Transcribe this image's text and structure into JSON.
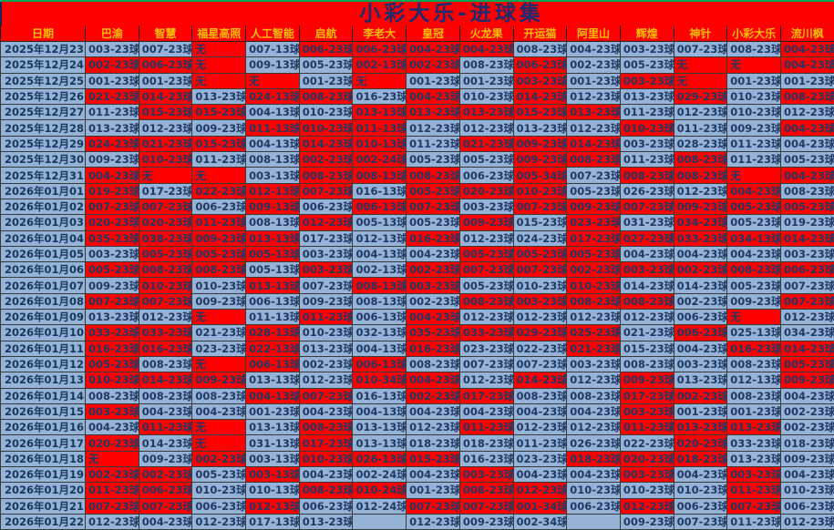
{
  "title": "小彩大乐-进球集",
  "colors": {
    "page_background": "#FF0000",
    "cell_red": "#FF0000",
    "cell_blue": "#95B3D7",
    "header_text": "#FFC000",
    "value_text": "#1F3864",
    "title_text": "#1b2c6e",
    "top_line_green": "#00A651"
  },
  "columns": [
    "日期",
    "巴渝",
    "智慧",
    "福星高照",
    "人工智能",
    "启航",
    "李老大",
    "皇冠",
    "火龙果",
    "开运猫",
    "阿里山",
    "辉煌",
    "神针",
    "小彩大乐",
    "流川枫"
  ],
  "rows": [
    {
      "date": "2025年12月23日",
      "cells": [
        "003-23球|b",
        "007-23球|b",
        "无|r",
        "007-13球|b",
        "006-23球|r",
        "006-23球|r",
        "004-23球|r",
        "004-23球|r",
        "008-23球|b",
        "004-23球|b",
        "003-23球|b",
        "007-23球|b",
        "008-23球|b",
        "004-23球|r"
      ]
    },
    {
      "date": "2025年12月24日",
      "cells": [
        "002-23球|r",
        "006-23球|r",
        "无|r",
        "009-13球|b",
        "005-23球|b",
        "002-13球|r",
        "002-23球|r",
        "008-23球|b",
        "006-23球|r",
        "002-23球|b",
        "005-23球|b",
        "无|r",
        "无|r",
        "004-23球|r"
      ]
    },
    {
      "date": "2025年12月25日",
      "cells": [
        "001-23球|b",
        "001-23球|b",
        "无|r",
        "无|r",
        "001-23球|b",
        "无|r",
        "001-23球|b",
        "001-23球|b",
        "003-23球|r",
        "001-23球|b",
        "003-23球|r",
        "无|r",
        "001-23球|b",
        "001-23球|b"
      ]
    },
    {
      "date": "2025年12月26日",
      "cells": [
        "021-23球|r",
        "014-23球|r",
        "013-23球|b",
        "024-13球|r",
        "008-23球|r",
        "016-23球|b",
        "004-23球|r",
        "010-23球|b",
        "014-23球|r",
        "012-23球|b",
        "013-23球|b",
        "029-23球|r",
        "010-23球|b",
        "008-23球|r"
      ]
    },
    {
      "date": "2025年12月27日",
      "cells": [
        "011-23球|b",
        "015-23球|r",
        "015-23球|r",
        "004-13球|b",
        "010-23球|b",
        "013-13球|r",
        "013-23球|r",
        "013-23球|r",
        "015-23球|r",
        "013-23球|r",
        "011-23球|b",
        "012-23球|b",
        "010-23球|b",
        "012-23球|b"
      ]
    },
    {
      "date": "2025年12月28日",
      "cells": [
        "013-23球|b",
        "012-23球|b",
        "009-23球|b",
        "011-13球|r",
        "010-23球|r",
        "011-13球|r",
        "012-23球|b",
        "012-23球|b",
        "013-23球|b",
        "012-23球|b",
        "010-23球|r",
        "011-23球|b",
        "009-23球|b",
        "004-23球|r"
      ]
    },
    {
      "date": "2025年12月29日",
      "cells": [
        "024-23球|r",
        "021-23球|r",
        "015-23球|r",
        "004-13球|b",
        "014-23球|r",
        "010-13球|r",
        "011-23球|b",
        "021-23球|r",
        "009-23球|r",
        "014-23球|r",
        "003-23球|b",
        "028-23球|b",
        "011-23球|b",
        "004-23球|b"
      ]
    },
    {
      "date": "2025年12月30日",
      "cells": [
        "009-23球|b",
        "010-23球|r",
        "011-23球|b",
        "008-13球|b",
        "002-23球|r",
        "002-24球|r",
        "005-23球|b",
        "005-23球|b",
        "009-23球|r",
        "008-23球|r",
        "011-23球|b",
        "008-23球|r",
        "011-23球|b",
        "005-23球|b"
      ]
    },
    {
      "date": "2025年12月31日",
      "cells": [
        "004-23球|r",
        "无|r",
        "无|r",
        "003-13球|b",
        "008-23球|r",
        "008-13球|r",
        "008-23球|r",
        "006-23球|b",
        "005-34球|r",
        "007-23球|b",
        "008-23球|r",
        "008-23球|r",
        "无|r",
        "004-23球|r"
      ]
    },
    {
      "date": "2026年01月01日",
      "cells": [
        "019-23球|r",
        "017-23球|b",
        "022-23球|r",
        "012-13球|r",
        "007-23球|r",
        "016-13球|b",
        "005-23球|r",
        "020-23球|r",
        "010-23球|r",
        "005-23球|b",
        "026-23球|b",
        "012-23球|b",
        "004-23球|r",
        "008-23球|b"
      ]
    },
    {
      "date": "2026年01月02日",
      "cells": [
        "007-23球|r",
        "007-23球|r",
        "006-23球|b",
        "009-13球|r",
        "006-23球|b",
        "006-13球|r",
        "007-23球|r",
        "003-23球|b",
        "007-23球|r",
        "009-23球|r",
        "007-23球|r",
        "009-23球|r",
        "005-23球|r",
        "005-23球|r"
      ]
    },
    {
      "date": "2026年01月03日",
      "cells": [
        "020-23球|r",
        "020-23球|r",
        "011-23球|r",
        "008-13球|b",
        "012-23球|r",
        "005-13球|b",
        "005-23球|b",
        "009-23球|r",
        "015-23球|b",
        "023-23球|r",
        "031-23球|b",
        "034-23球|r",
        "005-23球|b",
        "019-23球|b"
      ]
    },
    {
      "date": "2026年01月04日",
      "cells": [
        "035-23球|r",
        "038-23球|r",
        "009-23球|r",
        "013-13球|r",
        "017-23球|b",
        "012-13球|b",
        "016-23球|r",
        "012-23球|b",
        "024-23球|b",
        "017-23球|r",
        "027-23球|r",
        "033-23球|r",
        "034-13球|r",
        "014-23球|r"
      ]
    },
    {
      "date": "2026年01月05日",
      "cells": [
        "003-23球|b",
        "005-23球|r",
        "005-23球|r",
        "005-13球|r",
        "003-23球|b",
        "004-13球|b",
        "004-23球|b",
        "005-23球|r",
        "005-23球|r",
        "005-23球|r",
        "004-23球|b",
        "004-23球|b",
        "004-23球|b",
        "003-23球|b"
      ]
    },
    {
      "date": "2026年01月06日",
      "cells": [
        "005-23球|r",
        "008-23球|r",
        "008-23球|r",
        "005-13球|b",
        "003-23球|r",
        "002-13球|b",
        "002-23球|r",
        "007-23球|r",
        "007-23球|r",
        "002-23球|r",
        "003-23球|r",
        "002-23球|r",
        "008-23球|r",
        "006-23球|r"
      ]
    },
    {
      "date": "2026年01月07日",
      "cells": [
        "009-23球|b",
        "010-23球|r",
        "010-23球|b",
        "013-13球|r",
        "007-23球|b",
        "008-13球|r",
        "003-23球|r",
        "005-23球|b",
        "010-23球|b",
        "010-23球|r",
        "014-23球|b",
        "014-23球|b",
        "005-23球|b",
        "007-23球|b"
      ]
    },
    {
      "date": "2026年01月08日",
      "cells": [
        "007-23球|r",
        "007-23球|r",
        "009-23球|b",
        "006-13球|b",
        "009-23球|b",
        "008-13球|b",
        "002-23球|b",
        "008-23球|r",
        "003-23球|r",
        "008-23球|r",
        "008-23球|r",
        "002-23球|b",
        "009-23球|b",
        "007-23球|r"
      ]
    },
    {
      "date": "2026年01月09日",
      "cells": [
        "013-23球|b",
        "012-23球|b",
        "无|r",
        "011-13球|b",
        "011-23球|r",
        "006-13球|b",
        "004-23球|r",
        "012-23球|b",
        "012-23球|b",
        "012-23球|b",
        "012-23球|b",
        "006-23球|b",
        "无|r",
        "012-23球|b"
      ]
    },
    {
      "date": "2026年01月10日",
      "cells": [
        "033-23球|r",
        "033-23球|r",
        "021-23球|b",
        "028-13球|r",
        "010-23球|b",
        "032-13球|b",
        "035-23球|r",
        "033-23球|r",
        "029-23球|r",
        "025-23球|r",
        "021-23球|b",
        "006-23球|r",
        "025-13球|b",
        "034-23球|b"
      ]
    },
    {
      "date": "2026年01月11日",
      "cells": [
        "016-23球|r",
        "016-23球|r",
        "023-23球|b",
        "022-13球|r",
        "013-23球|b",
        "004-13球|b",
        "016-23球|r",
        "023-23球|b",
        "022-23球|b",
        "021-23球|r",
        "015-23球|b",
        "004-23球|b",
        "016-23球|r",
        "014-23球|r"
      ]
    },
    {
      "date": "2026年01月12日",
      "cells": [
        "005-23球|r",
        "008-23球|b",
        "无|r",
        "006-13球|r",
        "002-23球|b",
        "006-13球|r",
        "008-23球|b",
        "007-23球|b",
        "007-23球|b",
        "003-23球|b",
        "008-23球|b",
        "003-23球|b",
        "008-23球|b",
        "005-23球|r"
      ]
    },
    {
      "date": "2026年01月13日",
      "cells": [
        "010-23球|r",
        "014-23球|r",
        "009-23球|r",
        "013-13球|b",
        "012-23球|b",
        "010-34球|r",
        "004-23球|r",
        "012-23球|b",
        "014-23球|r",
        "012-23球|b",
        "009-23球|r",
        "013-23球|b",
        "012-13球|b",
        "009-23球|r"
      ]
    },
    {
      "date": "2026年01月14日",
      "cells": [
        "008-23球|b",
        "008-23球|b",
        "008-23球|b",
        "004-13球|r",
        "007-23球|r",
        "016-13球|b",
        "002-23球|r",
        "017-23球|r",
        "008-23球|b",
        "008-23球|b",
        "017-23球|r",
        "002-23球|r",
        "008-23球|b",
        "004-23球|b"
      ]
    },
    {
      "date": "2026年01月15日",
      "cells": [
        "003-23球|r",
        "004-23球|b",
        "004-23球|b",
        "001-23球|b",
        "004-23球|b",
        "004-13球|b",
        "004-23球|b",
        "004-23球|b",
        "004-23球|b",
        "004-23球|b",
        "003-23球|r",
        "001-23球|b",
        "001-23球|b",
        "002-23球|b"
      ]
    },
    {
      "date": "2026年01月16日",
      "cells": [
        "004-23球|b",
        "011-23球|r",
        "无|r",
        "013-13球|b",
        "008-23球|r",
        "013-13球|b",
        "012-23球|b",
        "011-23球|r",
        "012-23球|b",
        "012-23球|b",
        "011-23球|r",
        "013-23球|r",
        "013-23球|r",
        "002-23球|b"
      ]
    },
    {
      "date": "2026年01月17日",
      "cells": [
        "020-23球|r",
        "014-23球|b",
        "无|r",
        "031-13球|b",
        "017-23球|r",
        "013-13球|b",
        "018-23球|b",
        "018-23球|b",
        "011-23球|b",
        "026-23球|b",
        "022-23球|b",
        "020-23球|r",
        "033-23球|b",
        "018-23球|b"
      ]
    },
    {
      "date": "2026年01月18日",
      "cells": [
        "无|r",
        "009-23球|b",
        "002-23球|r",
        "003-13球|b",
        "010-23球|r",
        "026-13球|r",
        "015-23球|r",
        "016-23球|b",
        "023-23球|b",
        "018-23球|r",
        "020-23球|r",
        "018-23球|r",
        "013-23球|b",
        "009-23球|b"
      ]
    },
    {
      "date": "2026年01月19日",
      "cells": [
        "002-23球|r",
        "002-23球|r",
        "005-23球|b",
        "003-13球|r",
        "004-23球|b",
        "002-24球|b",
        "004-23球|b",
        "003-23球|r",
        "004-23球|b",
        "004-23球|b",
        "003-23球|r",
        "004-23球|b",
        "003-23球|r",
        "004-23球|b"
      ]
    },
    {
      "date": "2026年01月20日",
      "cells": [
        "011-23球|r",
        "006-23球|r",
        "010-23球|b",
        "010-13球|b",
        "008-23球|r",
        "010-24球|r",
        "001-23球|b",
        "008-23球|r",
        "012-23球|r",
        "010-23球|b",
        "010-23球|b",
        "010-23球|b",
        "011-23球|r",
        "010-23球|b"
      ]
    },
    {
      "date": "2026年01月21日",
      "cells": [
        "007-23球|r",
        "007-23球|r",
        "006-23球|b",
        "012-13球|r",
        "006-23球|b",
        "012-24球|b",
        "007-23球|r",
        "007-23球|r",
        "001-34球|r",
        "006-23球|b",
        "012-23球|r",
        "006-23球|b",
        "007-23球|r",
        "006-23球|b"
      ]
    },
    {
      "date": "2026年01月22日",
      "cells": [
        "012-23球|b",
        "004-23球|b",
        "012-23球|b",
        "017-13球|b",
        "013-23球|b",
        "|b",
        "012-23球|b",
        "009-23球|b",
        "002-34球|b",
        "|b",
        "009-23球|b",
        "007-23球|b",
        "011-23球|b",
        "012-23球|b"
      ]
    }
  ]
}
